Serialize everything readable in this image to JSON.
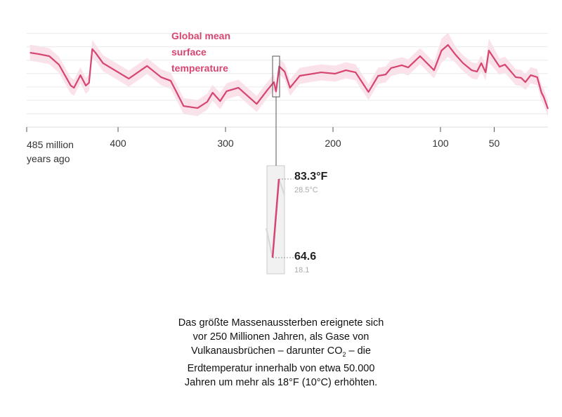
{
  "chart_data": {
    "type": "line",
    "title": "Global mean surface temperature",
    "x": [
      482,
      474,
      464,
      455,
      444,
      441,
      435,
      430,
      427,
      424,
      421,
      414,
      403,
      390,
      373,
      360,
      351,
      339,
      326,
      317,
      312,
      305,
      299,
      288,
      271,
      261,
      255,
      253,
      250,
      245,
      240,
      231,
      211,
      198,
      188,
      179,
      167,
      158,
      151,
      146,
      136,
      130,
      119,
      106,
      99,
      93,
      86,
      79,
      71,
      66,
      62,
      58,
      55,
      45,
      40,
      30,
      25,
      21,
      16,
      10,
      6,
      4,
      0
    ],
    "series": [
      {
        "color": "#d6456f",
        "values": [
          93.6,
          92.6,
          91.0,
          84.7,
          69.0,
          67.4,
          76.8,
          69.0,
          71.1,
          96.3,
          93.6,
          85.8,
          80.5,
          74.2,
          83.7,
          75.3,
          72.6,
          53.7,
          52.2,
          56.9,
          63.7,
          57.4,
          64.8,
          67.4,
          55.3,
          65.8,
          71.6,
          64.6,
          83.3,
          79.5,
          67.4,
          76.3,
          78.9,
          77.9,
          80.5,
          78.9,
          64.2,
          76.3,
          77.3,
          82.1,
          84.2,
          82.6,
          91.0,
          80.5,
          95.2,
          99.4,
          92.1,
          85.8,
          80.5,
          79.5,
          85.8,
          78.9,
          95.2,
          83.1,
          84.7,
          75.3,
          74.8,
          71.6,
          76.8,
          75.3,
          63.7,
          60.6,
          51.6
        ]
      }
    ],
    "band": {
      "color": "#fbe1e9",
      "upper": [
        99.6,
        98.6,
        97.0,
        90.7,
        75.0,
        73.4,
        82.8,
        75.0,
        77.1,
        103.3,
        99.6,
        91.8,
        86.5,
        80.2,
        89.7,
        81.3,
        78.6,
        59.7,
        58.2,
        62.9,
        69.7,
        63.4,
        70.8,
        73.4,
        61.3,
        71.8,
        77.6,
        70.6,
        89.3,
        85.5,
        73.4,
        82.3,
        84.9,
        83.9,
        86.5,
        84.9,
        70.2,
        82.3,
        83.3,
        88.1,
        90.2,
        88.6,
        97.0,
        86.5,
        104.2,
        108.4,
        98.1,
        91.8,
        86.5,
        85.5,
        91.8,
        84.9,
        104.2,
        89.1,
        90.7,
        81.3,
        80.8,
        77.6,
        82.8,
        81.3,
        69.7,
        66.6,
        57.6
      ],
      "lower": [
        87.6,
        86.6,
        85.0,
        78.7,
        63.0,
        61.4,
        70.8,
        63.0,
        65.1,
        89.3,
        87.6,
        79.8,
        74.5,
        68.2,
        77.7,
        69.3,
        66.6,
        47.7,
        46.2,
        50.9,
        57.7,
        51.4,
        58.8,
        61.4,
        49.3,
        59.8,
        65.6,
        58.6,
        77.3,
        73.5,
        61.4,
        70.3,
        72.9,
        71.9,
        74.5,
        72.9,
        58.2,
        70.3,
        71.3,
        76.1,
        78.2,
        76.6,
        85.0,
        74.5,
        86.2,
        90.4,
        86.1,
        79.8,
        74.5,
        73.5,
        79.8,
        72.9,
        86.2,
        77.1,
        78.7,
        69.3,
        68.8,
        65.6,
        70.8,
        69.3,
        57.7,
        54.6,
        45.6
      ]
    },
    "xlim": [
      485,
      0
    ],
    "xticks": [
      {
        "value": 485,
        "label": "485 million years ago"
      },
      400,
      300,
      200,
      100,
      50
    ],
    "ylim": [
      38,
      112
    ],
    "yticks": [
      48,
      58,
      68,
      78,
      88,
      98,
      108
    ],
    "grid": true,
    "callouts": [
      {
        "value": 83.3,
        "label": "83.3°F",
        "sublabel": "28.5°C"
      },
      {
        "value": 64.6,
        "label": "64.6",
        "sublabel": "18.1"
      }
    ]
  },
  "caption": {
    "before": "Das größte Massenaussterben ereignete sich vor 250 Millionen Jahren, als Gase von Vulkanausbrüchen – darunter CO",
    "subscript": "2",
    "after": " – die Erdtemperatur innerhalb von etwa 50.000 Jahren um mehr als 18°F (10°C) erhöhten."
  }
}
